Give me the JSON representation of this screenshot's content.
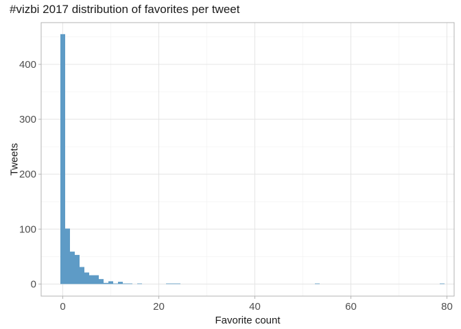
{
  "chart_data": {
    "type": "bar",
    "title": "#vizbi 2017 distribution of favorites per tweet",
    "xlabel": "Favorite count",
    "ylabel": "Tweets",
    "xlim": [
      -4.5,
      81.5
    ],
    "ylim": [
      -22,
      476
    ],
    "x_ticks": [
      0,
      20,
      40,
      60,
      80
    ],
    "x_tick_labels": [
      "0",
      "20",
      "40",
      "60",
      "80"
    ],
    "y_ticks": [
      0,
      100,
      200,
      300,
      400
    ],
    "y_tick_labels": [
      "0",
      "100",
      "200",
      "300",
      "400"
    ],
    "bin_width": 1,
    "grid": true,
    "bar_color": "#5e9bc6",
    "bins": [
      {
        "x": 0,
        "count": 455
      },
      {
        "x": 1,
        "count": 101
      },
      {
        "x": 2,
        "count": 59
      },
      {
        "x": 3,
        "count": 53
      },
      {
        "x": 4,
        "count": 31
      },
      {
        "x": 5,
        "count": 21
      },
      {
        "x": 6,
        "count": 16
      },
      {
        "x": 7,
        "count": 16
      },
      {
        "x": 8,
        "count": 9
      },
      {
        "x": 9,
        "count": 2
      },
      {
        "x": 10,
        "count": 5
      },
      {
        "x": 11,
        "count": 1
      },
      {
        "x": 12,
        "count": 4
      },
      {
        "x": 13,
        "count": 1
      },
      {
        "x": 14,
        "count": 1
      },
      {
        "x": 16,
        "count": 1
      },
      {
        "x": 22,
        "count": 1
      },
      {
        "x": 23,
        "count": 1
      },
      {
        "x": 24,
        "count": 1
      },
      {
        "x": 53,
        "count": 1
      },
      {
        "x": 79,
        "count": 1
      }
    ]
  }
}
